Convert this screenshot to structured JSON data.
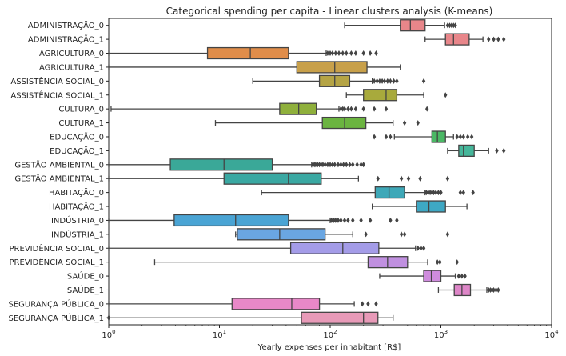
{
  "chart_data": {
    "type": "box",
    "title": "Categorical spending per capita - Linear clusters analysis (K-means)",
    "xlabel": "Yearly expenses per inhabitant [R$]",
    "ylabel": "",
    "x_scale": "log",
    "xlim": [
      1,
      10000
    ],
    "x_ticks": [
      {
        "value": 1,
        "base": "10",
        "exp": "0"
      },
      {
        "value": 10,
        "base": "10",
        "exp": "1"
      },
      {
        "value": 100,
        "base": "10",
        "exp": "2"
      },
      {
        "value": 1000,
        "base": "10",
        "exp": "3"
      },
      {
        "value": 10000,
        "base": "10",
        "exp": "4"
      }
    ],
    "grid": false,
    "categories": [
      {
        "label": "ADMINISTRAÇÃO_0",
        "color": "#e8868a",
        "whisker_low": 135,
        "q1": 430,
        "median": 530,
        "q3": 720,
        "whisker_high": 1080,
        "outliers": [
          1150,
          1200,
          1250,
          1300,
          1350
        ]
      },
      {
        "label": "ADMINISTRAÇÃO_1",
        "color": "#e8868a",
        "whisker_low": 720,
        "q1": 1100,
        "median": 1300,
        "q3": 1800,
        "whisker_high": 2400,
        "outliers": [
          2700,
          3000,
          3300,
          3700
        ]
      },
      {
        "label": "AGRICULTURA_0",
        "color": "#e08d4a",
        "whisker_low": 1,
        "q1": 7.8,
        "median": 19,
        "q3": 42,
        "whisker_high": 92,
        "outliers": [
          95,
          100,
          105,
          112,
          120,
          130,
          140,
          155,
          170,
          200,
          230,
          260
        ]
      },
      {
        "label": "AGRICULTURA_1",
        "color": "#c8a04a",
        "whisker_low": 1,
        "q1": 50,
        "median": 110,
        "q3": 215,
        "whisker_high": 430,
        "outliers": []
      },
      {
        "label": "ASSISTÊNCIA SOCIAL_0",
        "color": "#b5a445",
        "whisker_low": 20,
        "q1": 80,
        "median": 110,
        "q3": 150,
        "whisker_high": 240,
        "outliers": [
          250,
          265,
          280,
          295,
          310,
          330,
          350,
          375,
          400,
          700
        ]
      },
      {
        "label": "ASSISTÊNCIA SOCIAL_1",
        "color": "#a8aa3c",
        "whisker_low": 140,
        "q1": 200,
        "median": 320,
        "q3": 400,
        "whisker_high": 700,
        "outliers": [
          1100
        ]
      },
      {
        "label": "CULTURA_0",
        "color": "#8fb03c",
        "whisker_low": 1.05,
        "q1": 35,
        "median": 52,
        "q3": 75,
        "whisker_high": 120,
        "outliers": [
          125,
          130,
          135,
          145,
          155,
          170,
          200,
          250,
          320,
          750
        ]
      },
      {
        "label": "CULTURA_1",
        "color": "#6bb440",
        "whisker_low": 9.2,
        "q1": 85,
        "median": 135,
        "q3": 210,
        "whisker_high": 370,
        "outliers": [
          470,
          620
        ]
      },
      {
        "label": "EDUCAÇÃO_0",
        "color": "#4bb865",
        "whisker_low": 380,
        "q1": 830,
        "median": 930,
        "q3": 1100,
        "whisker_high": 1300,
        "outliers": [
          250,
          320,
          350,
          1400,
          1500,
          1600,
          1750,
          1900
        ]
      },
      {
        "label": "EDUCAÇÃO_1",
        "color": "#45b69a",
        "whisker_low": 1150,
        "q1": 1450,
        "median": 1600,
        "q3": 2000,
        "whisker_high": 2700,
        "outliers": [
          3200,
          3700
        ]
      },
      {
        "label": "GESTÃO AMBIENTAL_0",
        "color": "#3aa898",
        "whisker_low": 1,
        "q1": 3.6,
        "median": 11,
        "q3": 30,
        "whisker_high": 68,
        "outliers": [
          70,
          72,
          74,
          77,
          80,
          83,
          86,
          90,
          95,
          100,
          105,
          110,
          118,
          125,
          132,
          140,
          150,
          160,
          175,
          190,
          200
        ]
      },
      {
        "label": "GESTÃO AMBIENTAL_1",
        "color": "#3aa8a2",
        "whisker_low": 1,
        "q1": 11,
        "median": 42,
        "q3": 83,
        "whisker_high": 180,
        "outliers": [
          270,
          440,
          510,
          650,
          1150
        ]
      },
      {
        "label": "HABITAÇÃO_0",
        "color": "#3ea8b8",
        "whisker_low": 24,
        "q1": 255,
        "median": 340,
        "q3": 470,
        "whisker_high": 720,
        "outliers": [
          740,
          770,
          800,
          830,
          860,
          900,
          950,
          1000,
          1500,
          1600,
          1950
        ]
      },
      {
        "label": "HABITAÇÃO_1",
        "color": "#3ea8c4",
        "whisker_low": 240,
        "q1": 600,
        "median": 780,
        "q3": 1100,
        "whisker_high": 1720,
        "outliers": []
      },
      {
        "label": "INDÚSTRIA_0",
        "color": "#4aa4d4",
        "whisker_low": 1,
        "q1": 3.9,
        "median": 14,
        "q3": 42,
        "whisker_high": 100,
        "outliers": [
          103,
          108,
          112,
          118,
          125,
          135,
          145,
          160,
          190,
          230,
          350,
          400
        ]
      },
      {
        "label": "INDÚSTRIA_1",
        "color": "#6aa6e2",
        "whisker_low": 14,
        "q1": 14.5,
        "median": 35,
        "q3": 90,
        "whisker_high": 160,
        "outliers": [
          210,
          440,
          470,
          1150
        ]
      },
      {
        "label": "PREVIDÊNCIA SOCIAL_0",
        "color": "#a49ce8",
        "whisker_low": 1,
        "q1": 44,
        "median": 130,
        "q3": 275,
        "whisker_high": 590,
        "outliers": [
          620,
          660,
          700
        ]
      },
      {
        "label": "PREVIDÊNCIA SOCIAL_1",
        "color": "#c090e0",
        "whisker_low": 2.6,
        "q1": 220,
        "median": 330,
        "q3": 500,
        "whisker_high": 760,
        "outliers": [
          930,
          980,
          1400
        ]
      },
      {
        "label": "SAÚDE_0",
        "color": "#cf8cdd",
        "whisker_low": 280,
        "q1": 700,
        "median": 820,
        "q3": 1000,
        "whisker_high": 1350,
        "outliers": [
          1450,
          1550,
          1650
        ]
      },
      {
        "label": "SAÚDE_1",
        "color": "#de86c8",
        "whisker_low": 950,
        "q1": 1320,
        "median": 1550,
        "q3": 1850,
        "whisker_high": 2600,
        "outliers": [
          2700,
          2800,
          2900,
          3000,
          3150,
          3300
        ]
      },
      {
        "label": "SEGURANÇA PÚBLICA_0",
        "color": "#e888c8",
        "whisker_low": 1,
        "q1": 13,
        "median": 45,
        "q3": 80,
        "whisker_high": 165,
        "outliers": [
          195,
          220,
          260
        ]
      },
      {
        "label": "SEGURANÇA PÚBLICA_1",
        "color": "#e89ab8",
        "whisker_low": 1,
        "q1": 55,
        "median": 200,
        "q3": 270,
        "whisker_high": 370,
        "outliers": [
          1
        ]
      }
    ]
  }
}
